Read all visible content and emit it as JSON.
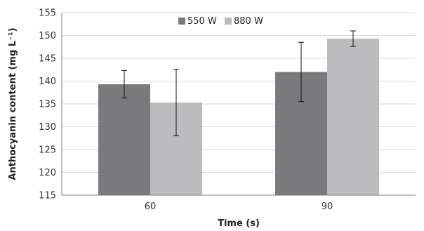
{
  "chart_data": {
    "type": "bar",
    "title": "",
    "xlabel": "Time (s)",
    "ylabel": "Anthocyanin content (mg L⁻¹)",
    "categories": [
      "60",
      "90"
    ],
    "series": [
      {
        "name": "550 W",
        "color": "#7a7a7c",
        "values": [
          139.3,
          142.0
        ],
        "errors": [
          3.0,
          6.5
        ]
      },
      {
        "name": "880 W",
        "color": "#bcbcbe",
        "values": [
          135.3,
          149.3
        ],
        "errors": [
          7.3,
          1.7
        ]
      }
    ],
    "ylim": [
      115,
      155
    ],
    "yticks": [
      115,
      120,
      125,
      130,
      135,
      140,
      145,
      150,
      155
    ],
    "grid": true,
    "legend_position": "top-center"
  }
}
